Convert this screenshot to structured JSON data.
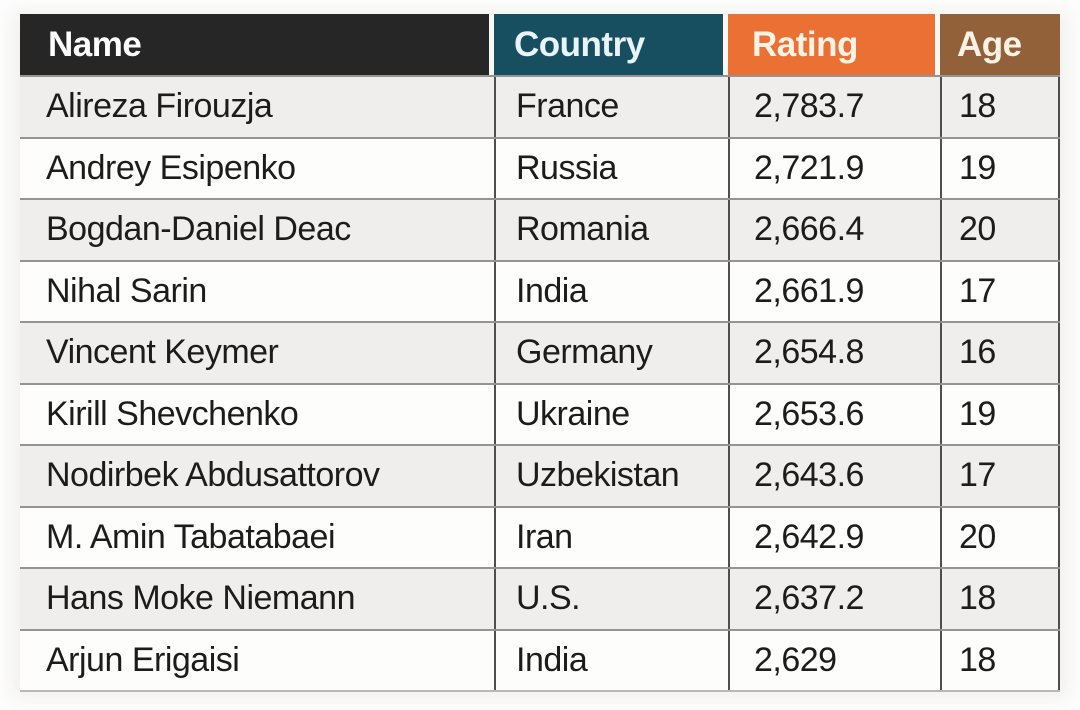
{
  "page": {
    "background_color": "#f1f0ee"
  },
  "table": {
    "headers": [
      {
        "label": "Name",
        "bg": "#262626",
        "fg": "#ffffff"
      },
      {
        "label": "Country",
        "bg": "#174e60",
        "fg": "#e8f4f8"
      },
      {
        "label": "Rating",
        "bg": "#ea7034",
        "fg": "#fcf3e6"
      },
      {
        "label": "Age",
        "bg": "#92613a",
        "fg": "#fcf3e6"
      }
    ],
    "rows": [
      {
        "name": "Alireza Firouzja",
        "country": "France",
        "rating": "2,783.7",
        "age": "18"
      },
      {
        "name": "Andrey Esipenko",
        "country": "Russia",
        "rating": "2,721.9",
        "age": "19"
      },
      {
        "name": "Bogdan-Daniel Deac",
        "country": "Romania",
        "rating": "2,666.4",
        "age": "20"
      },
      {
        "name": "Nihal Sarin",
        "country": "India",
        "rating": "2,661.9",
        "age": "17"
      },
      {
        "name": "Vincent Keymer",
        "country": "Germany",
        "rating": "2,654.8",
        "age": "16"
      },
      {
        "name": "Kirill Shevchenko",
        "country": "Ukraine",
        "rating": "2,653.6",
        "age": "19"
      },
      {
        "name": "Nodirbek Abdusattorov",
        "country": "Uzbekistan",
        "rating": "2,643.6",
        "age": "17"
      },
      {
        "name": "M. Amin Tabatabaei",
        "country": "Iran",
        "rating": "2,642.9",
        "age": "20"
      },
      {
        "name": "Hans Moke Niemann",
        "country": "U.S.",
        "rating": "2,637.2",
        "age": "18"
      },
      {
        "name": "Arjun Erigaisi",
        "country": "India",
        "rating": "2,629",
        "age": "18"
      }
    ],
    "stripe_colors": {
      "odd": "#efeeec",
      "even": "#fdfdfc"
    },
    "divider_colors": {
      "horizontal": "#949494",
      "vertical": "#4e4e4e"
    }
  },
  "chart_data": {
    "type": "table",
    "columns": [
      "Name",
      "Country",
      "Rating",
      "Age"
    ],
    "rows": [
      [
        "Alireza Firouzja",
        "France",
        2783.7,
        18
      ],
      [
        "Andrey Esipenko",
        "Russia",
        2721.9,
        19
      ],
      [
        "Bogdan-Daniel Deac",
        "Romania",
        2666.4,
        20
      ],
      [
        "Nihal Sarin",
        "India",
        2661.9,
        17
      ],
      [
        "Vincent Keymer",
        "Germany",
        2654.8,
        16
      ],
      [
        "Kirill Shevchenko",
        "Ukraine",
        2653.6,
        19
      ],
      [
        "Nodirbek Abdusattorov",
        "Uzbekistan",
        2643.6,
        17
      ],
      [
        "M. Amin Tabatabaei",
        "Iran",
        2642.9,
        20
      ],
      [
        "Hans Moke Niemann",
        "U.S.",
        2637.2,
        18
      ],
      [
        "Arjun Erigaisi",
        "India",
        2629,
        18
      ]
    ]
  }
}
